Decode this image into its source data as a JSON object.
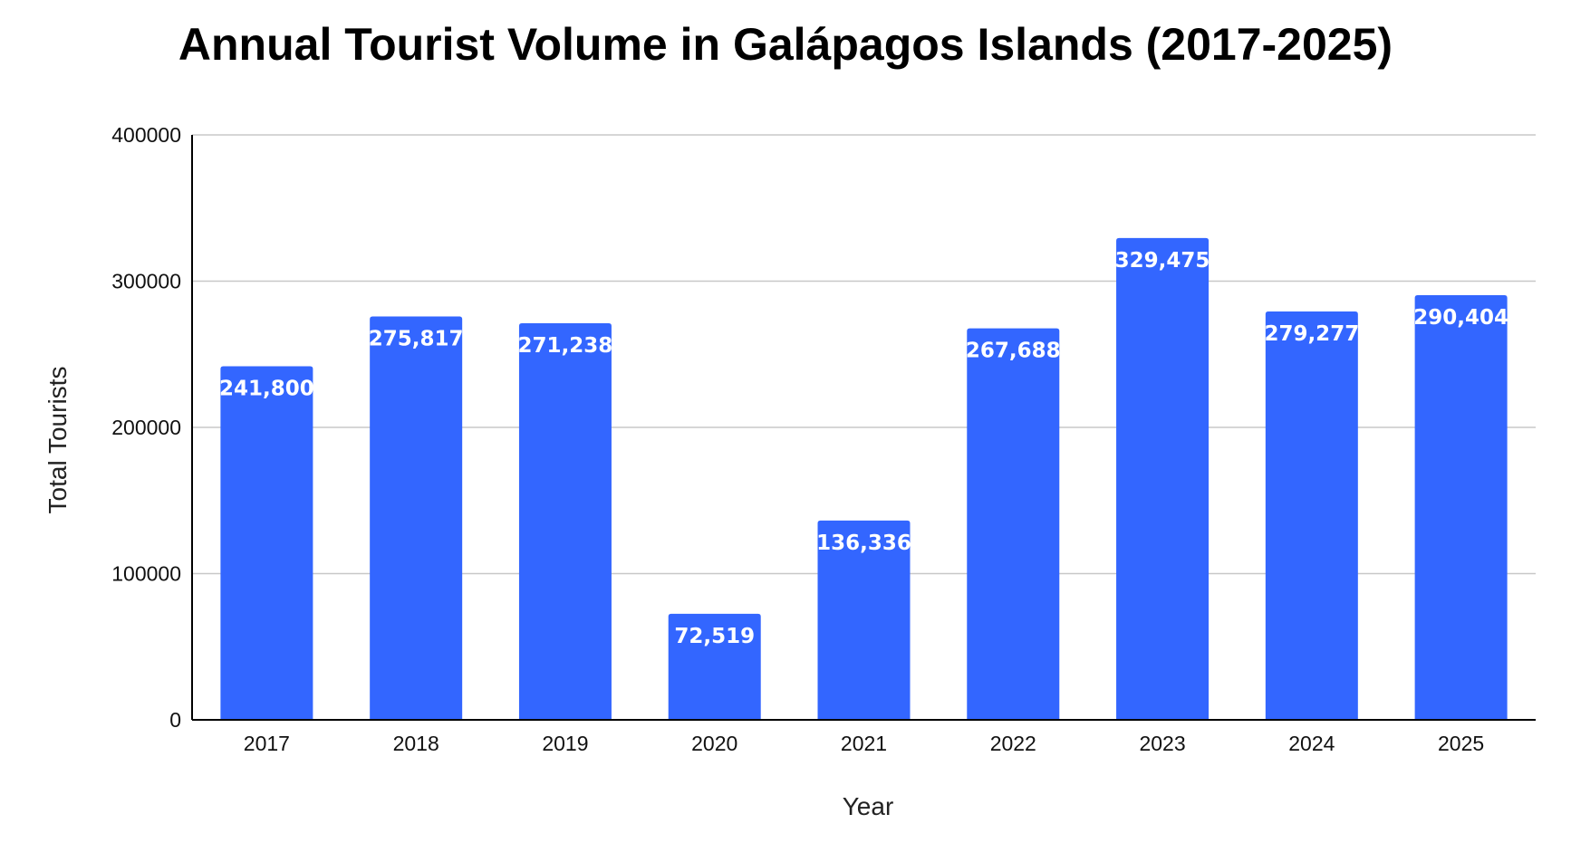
{
  "chart_data": {
    "type": "bar",
    "title": "Annual Tourist Volume in Galápagos Islands (2017-2025)",
    "xlabel": "Year",
    "ylabel": "Total Tourists",
    "categories": [
      "2017",
      "2018",
      "2019",
      "2020",
      "2021",
      "2022",
      "2023",
      "2024",
      "2025"
    ],
    "values": [
      241800,
      275817,
      271238,
      72519,
      136336,
      267688,
      329475,
      279277,
      290404
    ],
    "data_labels": [
      "241,800",
      "275,817",
      "271,238",
      "72,519",
      "136,336",
      "267,688",
      "329,475",
      "279,277",
      "290,404"
    ],
    "ylim": [
      0,
      400000
    ],
    "yticks": [
      0,
      100000,
      200000,
      300000,
      400000
    ],
    "ytick_labels": [
      "0",
      "100000",
      "200000",
      "300000",
      "400000"
    ],
    "grid": true,
    "legend": "none",
    "bar_color": "#3366ff"
  }
}
